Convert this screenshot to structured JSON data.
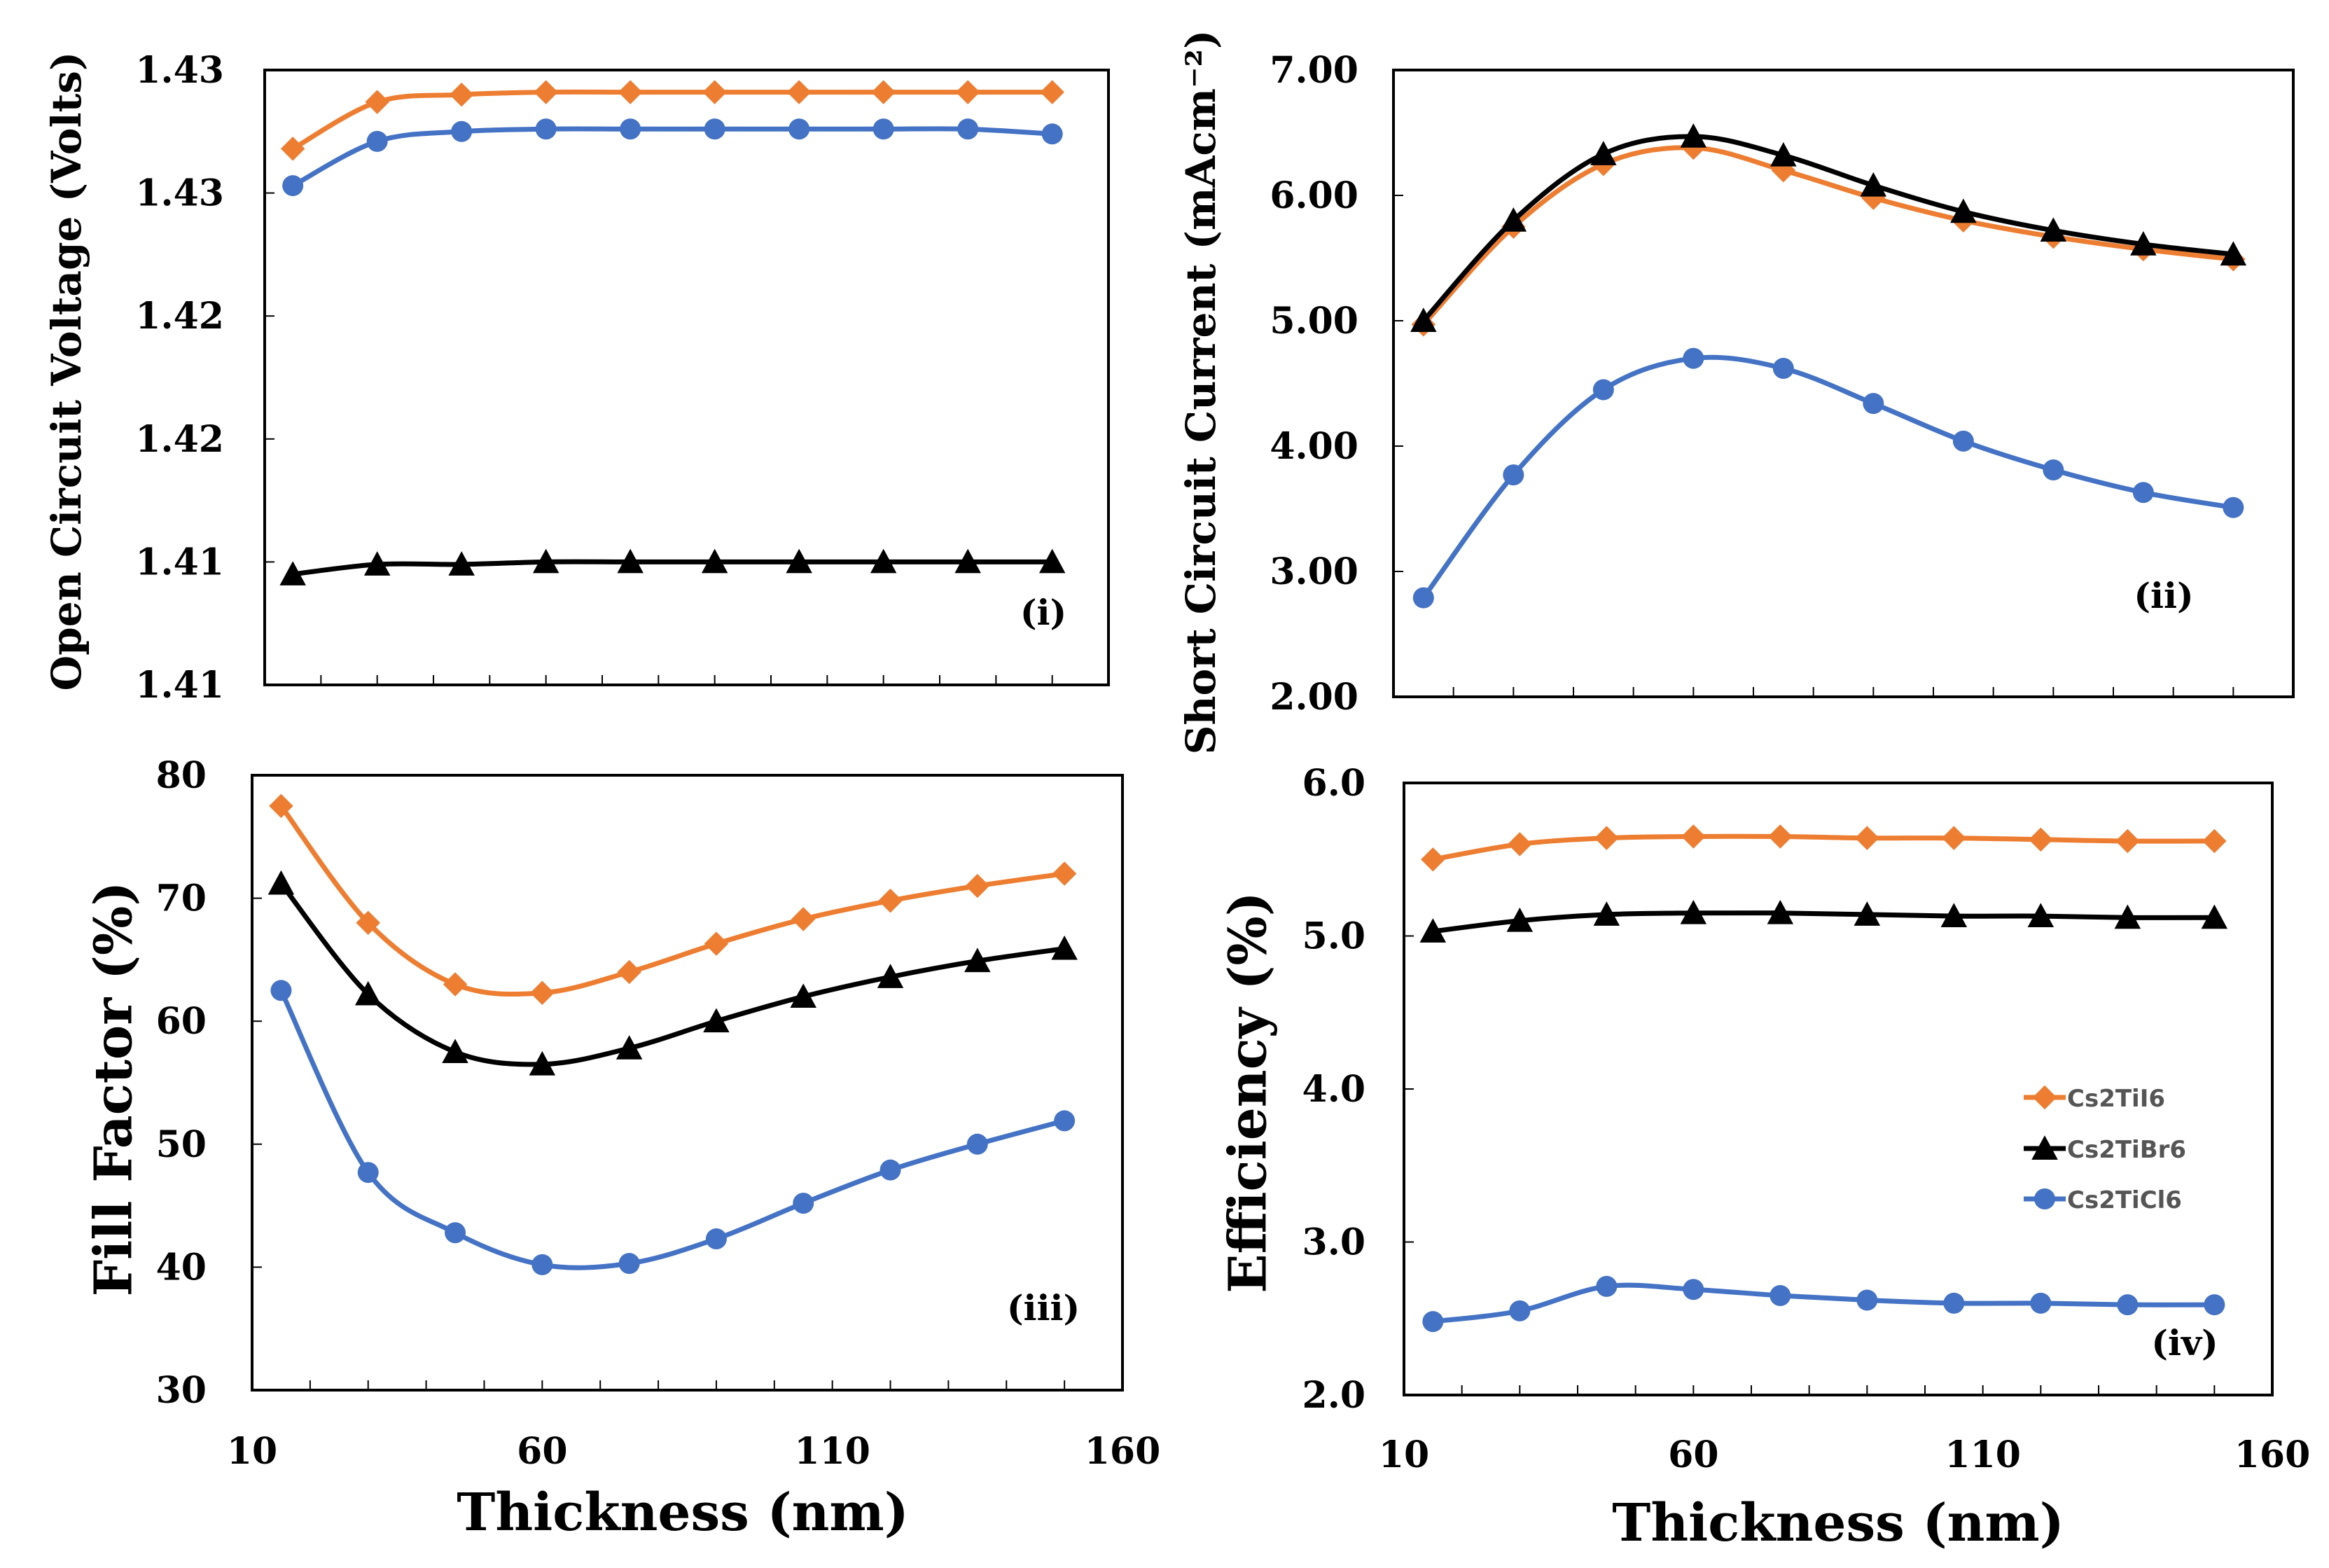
{
  "series_styles": [
    {
      "name": "Cs2TiI6",
      "color": "#ED7D31",
      "marker": "diamond"
    },
    {
      "name": "Cs2TiBr6",
      "color": "#000000",
      "marker": "triangle"
    },
    {
      "name": "Cs2TiCl6",
      "color": "#4472C4",
      "marker": "circle"
    }
  ],
  "legend_entries": [
    "Cs2TiI6",
    "Cs2TiBr6",
    "Cs2TiCl6"
  ],
  "chart_data": [
    {
      "type": "line",
      "panel_label": "(i)",
      "title": "",
      "xlabel": "",
      "ylabel": "Open Circuit Voltage (Volts)",
      "x": [
        15,
        30,
        45,
        60,
        75,
        90,
        105,
        120,
        135,
        150
      ],
      "xlim": [
        10,
        160
      ],
      "ylim": [
        1.405,
        1.43
      ],
      "yticks": [
        1.405,
        1.41,
        1.415,
        1.42,
        1.425,
        1.43
      ],
      "ytick_labels": [
        "1.41",
        "1.41",
        "1.42",
        "1.42",
        "1.43",
        "1.43"
      ],
      "series": [
        {
          "name": "Cs2TiI6",
          "values": [
            1.4268,
            1.4287,
            1.429,
            1.4291,
            1.4291,
            1.4291,
            1.4291,
            1.4291,
            1.4291,
            1.4291
          ]
        },
        {
          "name": "Cs2TiBr6",
          "values": [
            1.4095,
            1.4099,
            1.4099,
            1.41,
            1.41,
            1.41,
            1.41,
            1.41,
            1.41,
            1.41
          ]
        },
        {
          "name": "Cs2TiCl6",
          "values": [
            1.4253,
            1.4271,
            1.4275,
            1.4276,
            1.4276,
            1.4276,
            1.4276,
            1.4276,
            1.4276,
            1.4274
          ]
        }
      ]
    },
    {
      "type": "line",
      "panel_label": "(ii)",
      "title": "",
      "xlabel": "",
      "ylabel": "Short Circuit Current (mAcm⁻²)",
      "x": [
        15,
        30,
        45,
        60,
        75,
        90,
        105,
        120,
        135,
        150
      ],
      "xlim": [
        10,
        160
      ],
      "ylim": [
        2.0,
        7.0
      ],
      "yticks": [
        2,
        3,
        4,
        5,
        6,
        7
      ],
      "ytick_labels": [
        "2.00",
        "3.00",
        "4.00",
        "5.00",
        "6.00",
        "7.00"
      ],
      "series": [
        {
          "name": "Cs2TiI6",
          "values": [
            4.97,
            5.75,
            6.25,
            6.38,
            6.2,
            5.98,
            5.8,
            5.67,
            5.57,
            5.49
          ]
        },
        {
          "name": "Cs2TiBr6",
          "values": [
            5.0,
            5.8,
            6.33,
            6.47,
            6.32,
            6.08,
            5.87,
            5.72,
            5.61,
            5.53
          ]
        },
        {
          "name": "Cs2TiCl6",
          "values": [
            2.79,
            3.77,
            4.45,
            4.7,
            4.62,
            4.34,
            4.04,
            3.81,
            3.63,
            3.51
          ]
        }
      ]
    },
    {
      "type": "line",
      "panel_label": "(iii)",
      "title": "",
      "xlabel": "Thickness (nm)",
      "ylabel": "Fill Factor (%)",
      "x": [
        15,
        30,
        45,
        60,
        75,
        90,
        105,
        120,
        135,
        150
      ],
      "xlim": [
        10,
        160
      ],
      "xticks": [
        10,
        60,
        110,
        160
      ],
      "xtick_labels": [
        "10",
        "60",
        "110",
        "160"
      ],
      "ylim": [
        30,
        80
      ],
      "yticks": [
        30,
        40,
        50,
        60,
        70,
        80
      ],
      "ytick_labels": [
        "30",
        "40",
        "50",
        "60",
        "70",
        "80"
      ],
      "series": [
        {
          "name": "Cs2TiI6",
          "values": [
            77.5,
            68.0,
            63.0,
            62.3,
            64.0,
            66.3,
            68.3,
            69.8,
            71.0,
            72.0
          ]
        },
        {
          "name": "Cs2TiBr6",
          "values": [
            71.2,
            62.2,
            57.5,
            56.5,
            57.8,
            60.0,
            62.0,
            63.6,
            64.9,
            65.9
          ]
        },
        {
          "name": "Cs2TiCl6",
          "values": [
            62.5,
            47.7,
            42.8,
            40.2,
            40.3,
            42.3,
            45.2,
            47.9,
            50.0,
            51.9
          ]
        }
      ]
    },
    {
      "type": "line",
      "panel_label": "(iv)",
      "title": "",
      "xlabel": "Thickness (nm)",
      "ylabel": "Efficiency (%)",
      "x": [
        15,
        30,
        45,
        60,
        75,
        90,
        105,
        120,
        135,
        150
      ],
      "xlim": [
        10,
        160
      ],
      "xticks": [
        10,
        60,
        110,
        160
      ],
      "xtick_labels": [
        "10",
        "60",
        "110",
        "160"
      ],
      "ylim": [
        2.0,
        6.0
      ],
      "yticks": [
        2,
        3,
        4,
        5,
        6
      ],
      "ytick_labels": [
        "2.0",
        "3.0",
        "4.0",
        "5.0",
        "6.0"
      ],
      "series": [
        {
          "name": "Cs2TiI6",
          "values": [
            5.5,
            5.6,
            5.64,
            5.65,
            5.65,
            5.64,
            5.64,
            5.63,
            5.62,
            5.62
          ]
        },
        {
          "name": "Cs2TiBr6",
          "values": [
            5.03,
            5.1,
            5.14,
            5.15,
            5.15,
            5.14,
            5.13,
            5.13,
            5.12,
            5.12
          ]
        },
        {
          "name": "Cs2TiCl6",
          "values": [
            2.48,
            2.55,
            2.71,
            2.69,
            2.65,
            2.62,
            2.6,
            2.6,
            2.59,
            2.59
          ]
        }
      ]
    }
  ]
}
